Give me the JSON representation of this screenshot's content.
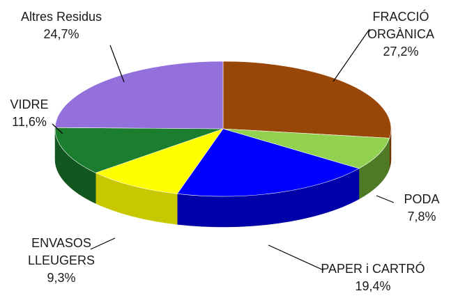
{
  "chart_data": {
    "type": "pie",
    "title": "",
    "legend": "none",
    "slices": [
      {
        "label": [
          "FRACCIÓ",
          "ORGÀNICA"
        ],
        "value": 27.2,
        "value_text": "27,2%",
        "color": "#994708",
        "side_color": "#6e3206"
      },
      {
        "label": [
          "PODA"
        ],
        "value": 7.8,
        "value_text": "7,8%",
        "color": "#92d050",
        "side_color": "#4f7a25"
      },
      {
        "label": [
          "PAPER i CARTRÓ"
        ],
        "value": 19.4,
        "value_text": "19,4%",
        "color": "#0000ff",
        "side_color": "#0000a8"
      },
      {
        "label": [
          "ENVASOS",
          "LLEUGERS"
        ],
        "value": 9.3,
        "value_text": "9,3%",
        "color": "#ffff00",
        "side_color": "#c8c800"
      },
      {
        "label": [
          "VIDRE"
        ],
        "value": 11.6,
        "value_text": "11,6%",
        "color": "#1b7e2e",
        "side_color": "#12571f"
      },
      {
        "label": [
          "Altres Residus"
        ],
        "value": 24.7,
        "value_text": "24,7%",
        "color": "#9370db",
        "side_color": "#6a4fa8"
      }
    ]
  }
}
